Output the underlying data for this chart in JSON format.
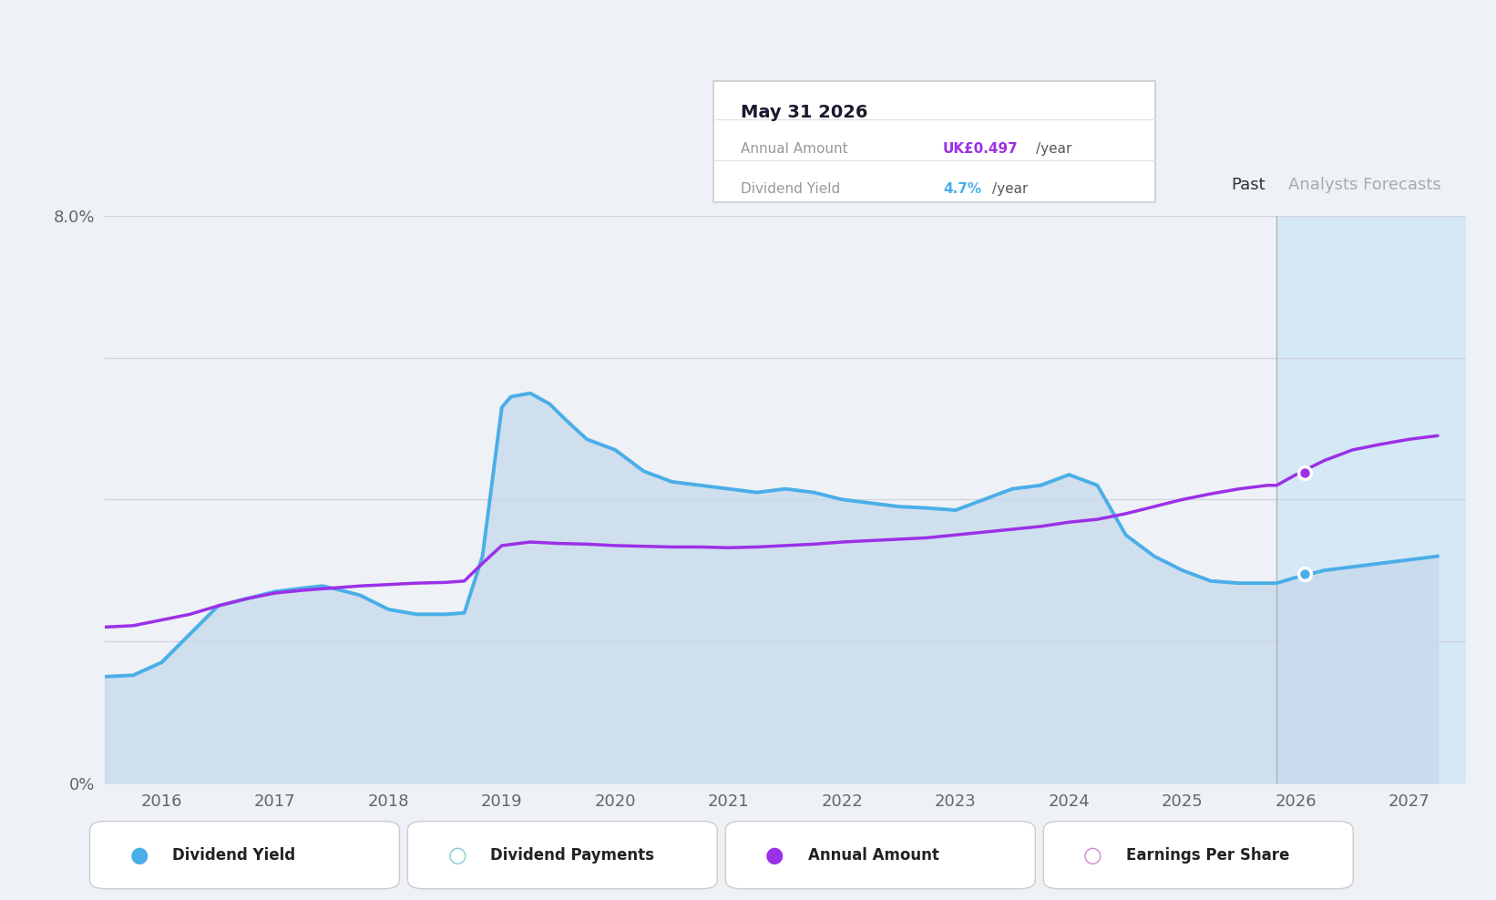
{
  "background_color": "#eef1f5",
  "plot_bg_color": "#eef1f5",
  "ylim": [
    0,
    8.0
  ],
  "xlim": [
    2015.5,
    2027.5
  ],
  "forecast_start": 2025.83,
  "dividend_yield_color": "#4aaee8",
  "annual_amount_color": "#9b30e8",
  "fill_color": "#c5d9ec",
  "fill_alpha": 0.75,
  "forecast_fill_color": "#d5e8f5",
  "dividend_yield_x": [
    2015.5,
    2015.75,
    2016.0,
    2016.25,
    2016.5,
    2016.75,
    2017.0,
    2017.25,
    2017.42,
    2017.58,
    2017.75,
    2018.0,
    2018.25,
    2018.5,
    2018.67,
    2018.83,
    2019.0,
    2019.08,
    2019.25,
    2019.42,
    2019.58,
    2019.75,
    2020.0,
    2020.25,
    2020.5,
    2020.75,
    2021.0,
    2021.25,
    2021.5,
    2021.75,
    2022.0,
    2022.25,
    2022.5,
    2022.75,
    2023.0,
    2023.25,
    2023.5,
    2023.75,
    2024.0,
    2024.25,
    2024.5,
    2024.75,
    2025.0,
    2025.25,
    2025.5,
    2025.75,
    2025.83,
    2026.0,
    2026.25,
    2026.5,
    2026.75,
    2027.0,
    2027.25
  ],
  "dividend_yield_y": [
    1.5,
    1.52,
    1.7,
    2.1,
    2.5,
    2.6,
    2.7,
    2.75,
    2.78,
    2.72,
    2.65,
    2.45,
    2.38,
    2.38,
    2.4,
    3.2,
    5.3,
    5.45,
    5.5,
    5.35,
    5.1,
    4.85,
    4.7,
    4.4,
    4.25,
    4.2,
    4.15,
    4.1,
    4.15,
    4.1,
    4.0,
    3.95,
    3.9,
    3.88,
    3.85,
    4.0,
    4.15,
    4.2,
    4.35,
    4.2,
    3.5,
    3.2,
    3.0,
    2.85,
    2.82,
    2.82,
    2.82,
    2.9,
    3.0,
    3.05,
    3.1,
    3.15,
    3.2
  ],
  "annual_amount_x": [
    2015.5,
    2015.75,
    2016.0,
    2016.25,
    2016.5,
    2016.75,
    2017.0,
    2017.25,
    2017.5,
    2017.75,
    2018.0,
    2018.25,
    2018.5,
    2018.67,
    2018.83,
    2019.0,
    2019.25,
    2019.5,
    2019.75,
    2020.0,
    2020.25,
    2020.5,
    2020.75,
    2021.0,
    2021.25,
    2021.5,
    2021.75,
    2022.0,
    2022.25,
    2022.5,
    2022.75,
    2023.0,
    2023.25,
    2023.5,
    2023.75,
    2024.0,
    2024.25,
    2024.5,
    2024.75,
    2025.0,
    2025.25,
    2025.5,
    2025.75,
    2025.83,
    2026.0,
    2026.25,
    2026.5,
    2026.75,
    2027.0,
    2027.25
  ],
  "annual_amount_y": [
    2.2,
    2.22,
    2.3,
    2.38,
    2.5,
    2.6,
    2.68,
    2.72,
    2.75,
    2.78,
    2.8,
    2.82,
    2.83,
    2.85,
    3.1,
    3.35,
    3.4,
    3.38,
    3.37,
    3.35,
    3.34,
    3.33,
    3.33,
    3.32,
    3.33,
    3.35,
    3.37,
    3.4,
    3.42,
    3.44,
    3.46,
    3.5,
    3.54,
    3.58,
    3.62,
    3.68,
    3.72,
    3.8,
    3.9,
    4.0,
    4.08,
    4.15,
    4.2,
    4.2,
    4.35,
    4.55,
    4.7,
    4.78,
    4.85,
    4.9
  ],
  "past_label": "Past",
  "forecast_label": "Analysts Forecasts",
  "tooltip_date": "May 31 2026",
  "tooltip_annual_label": "Annual Amount",
  "tooltip_annual_value": "UK£0.497",
  "tooltip_annual_suffix": "/year",
  "tooltip_yield_label": "Dividend Yield",
  "tooltip_yield_value": "4.7%",
  "tooltip_yield_suffix": "/year",
  "tooltip_annual_color": "#9b30e8",
  "tooltip_yield_color": "#4aaee8",
  "dy_dot_x": 2026.08,
  "dy_dot_y": 2.95,
  "aa_dot_x": 2026.08,
  "aa_dot_y": 4.38,
  "gridline_color": "#d0d5dd",
  "grid_y_values": [
    0,
    2,
    4,
    6,
    8
  ],
  "tick_color": "#666666",
  "legend_items": [
    {
      "label": "Dividend Yield",
      "color": "#4aaee8",
      "filled": true
    },
    {
      "label": "Dividend Payments",
      "color": "#85c8d8",
      "filled": false
    },
    {
      "label": "Annual Amount",
      "color": "#9b30e8",
      "filled": true
    },
    {
      "label": "Earnings Per Share",
      "color": "#cc88cc",
      "filled": false
    }
  ]
}
